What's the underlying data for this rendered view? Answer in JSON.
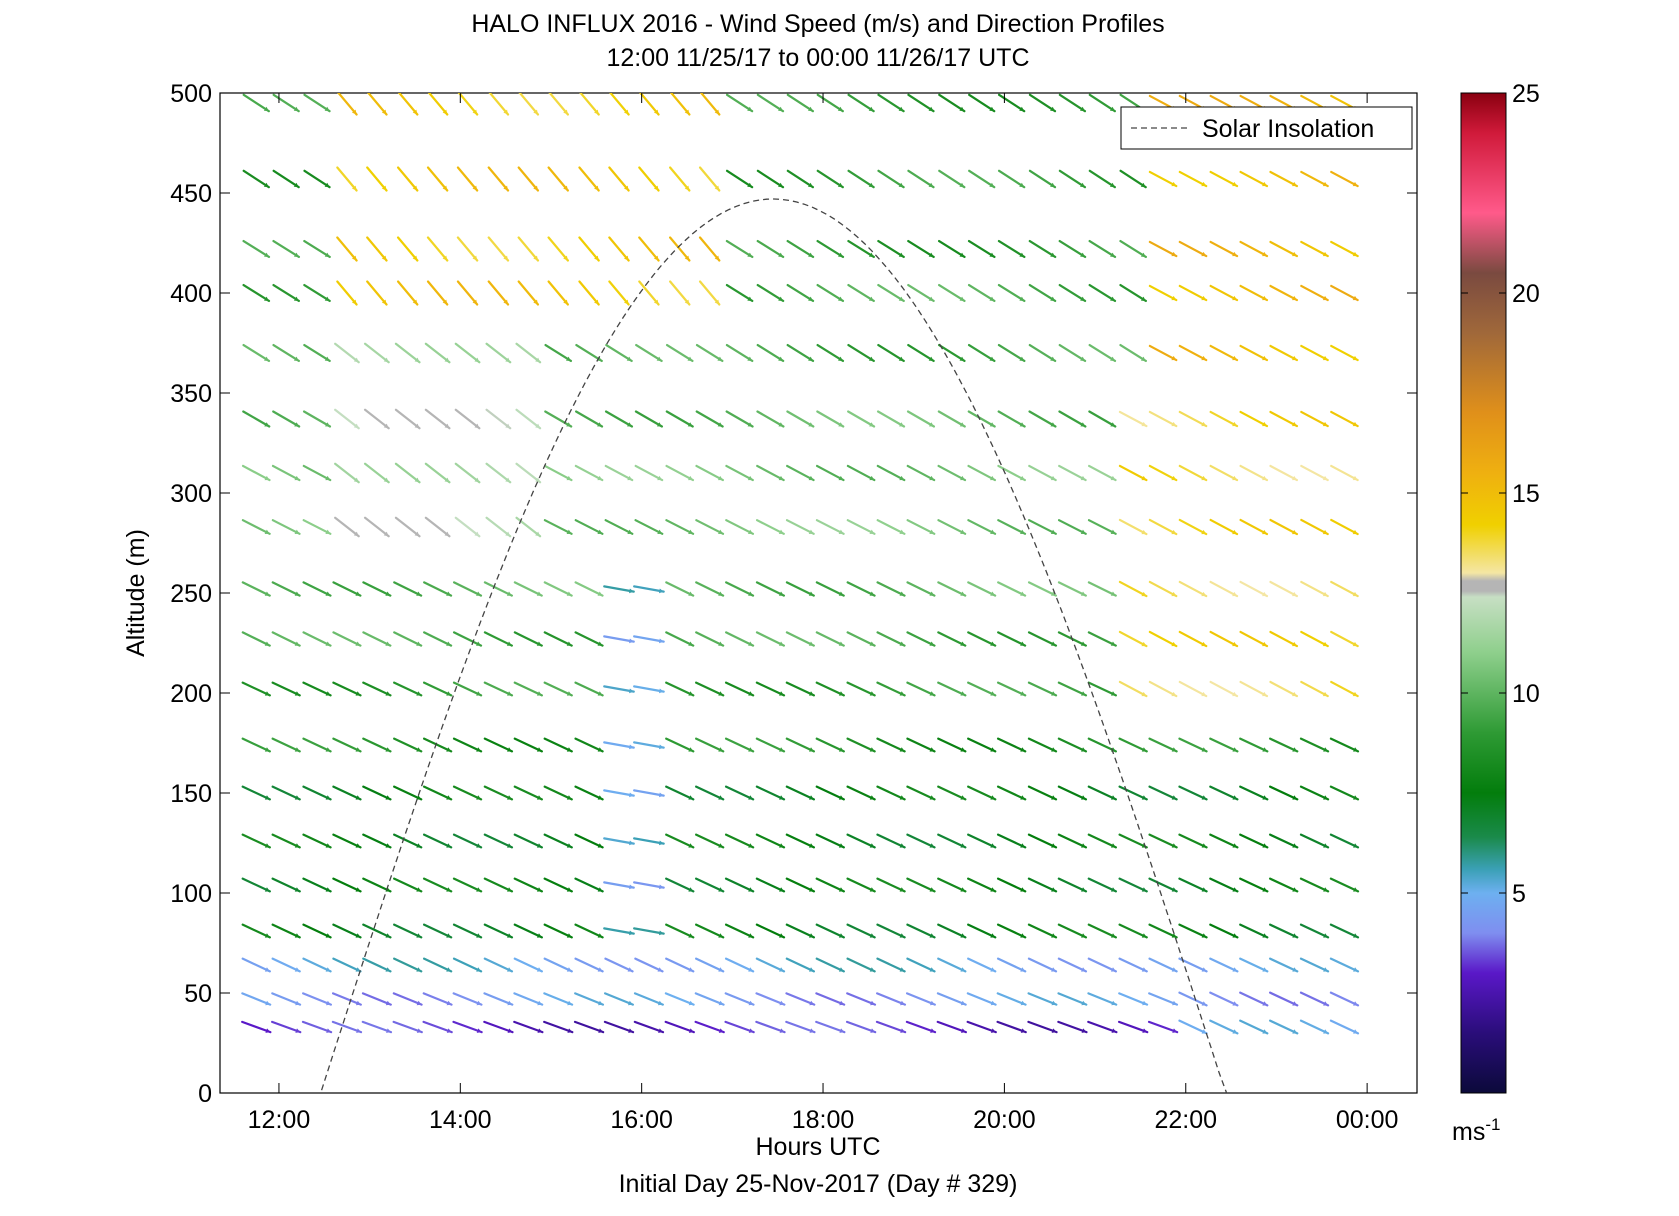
{
  "chart_data": {
    "type": "wind_barb_profile",
    "title": "HALO INFLUX 2016 - Wind Speed (m/s) and Direction Profiles",
    "subtitle": "12:00 11/25/17 to 00:00 11/26/17  UTC",
    "xlabel": "Hours UTC",
    "ylabel": "Altitude (m)",
    "footer": "Initial Day 25-Nov-2017 (Day # 329)",
    "x_ticks": [
      "12:00",
      "14:00",
      "16:00",
      "18:00",
      "20:00",
      "22:00",
      "00:00"
    ],
    "x_tick_hours": [
      12,
      14,
      16,
      18,
      20,
      22,
      24
    ],
    "xlim": [
      11.35,
      24.55
    ],
    "y_ticks": [
      0,
      50,
      100,
      150,
      200,
      250,
      300,
      350,
      400,
      450,
      500
    ],
    "ylim": [
      0,
      500
    ],
    "legend": {
      "entries": [
        "Solar Insolation"
      ],
      "position": "top-right"
    },
    "colorbar": {
      "unit_base": "ms",
      "unit_exp": "-1",
      "ticks": [
        5,
        10,
        15,
        20,
        25
      ],
      "range": [
        0,
        25
      ],
      "stops": [
        {
          "v": 0,
          "c": "#0b0a3a"
        },
        {
          "v": 1.5,
          "c": "#2a0d7a"
        },
        {
          "v": 3,
          "c": "#5a18c8"
        },
        {
          "v": 4,
          "c": "#7f8ef0"
        },
        {
          "v": 5,
          "c": "#6db0f0"
        },
        {
          "v": 5.6,
          "c": "#3aa0b5"
        },
        {
          "v": 6.4,
          "c": "#1a8a4a"
        },
        {
          "v": 7.5,
          "c": "#037d0c"
        },
        {
          "v": 9,
          "c": "#2e9a34"
        },
        {
          "v": 11,
          "c": "#8ecf8c"
        },
        {
          "v": 12.4,
          "c": "#c7dfc4"
        },
        {
          "v": 12.55,
          "c": "#b5b5b5"
        },
        {
          "v": 12.8,
          "c": "#b5b5b5"
        },
        {
          "v": 13,
          "c": "#f4e6a4"
        },
        {
          "v": 14.2,
          "c": "#f0d000"
        },
        {
          "v": 15.5,
          "c": "#efb010"
        },
        {
          "v": 17,
          "c": "#e0901a"
        },
        {
          "v": 19,
          "c": "#a0683a"
        },
        {
          "v": 20.5,
          "c": "#7a4a40"
        },
        {
          "v": 22,
          "c": "#ff5a8a"
        },
        {
          "v": 24,
          "c": "#d01a3a"
        },
        {
          "v": 25,
          "c": "#8a0010"
        }
      ]
    },
    "times": [
      11.75,
      12.08,
      12.42,
      12.75,
      13.08,
      13.42,
      13.75,
      14.08,
      14.42,
      14.75,
      15.08,
      15.42,
      15.75,
      16.08,
      16.42,
      16.75,
      17.08,
      17.42,
      17.75,
      18.08,
      18.42,
      18.75,
      19.08,
      19.42,
      19.75,
      20.08,
      20.42,
      20.75,
      21.08,
      21.42,
      21.75,
      22.08,
      22.42,
      22.75,
      23.08,
      23.42,
      23.75
    ],
    "altitudes": [
      33,
      47,
      64,
      81,
      104,
      126,
      150,
      174,
      202,
      227,
      252,
      283,
      310,
      337,
      370,
      400,
      422,
      457,
      495
    ],
    "speed_by_altitude": [
      3,
      4.5,
      5,
      7.5,
      7.5,
      7.5,
      7.5,
      8.5,
      9,
      9.5,
      10,
      10.5,
      10.5,
      10,
      9.5,
      9.5,
      9,
      9,
      9
    ],
    "direction_by_altitude_deg": [
      290,
      292,
      295,
      295,
      295,
      295,
      295,
      295,
      295,
      296,
      296,
      297,
      298,
      300,
      302,
      302,
      302,
      303,
      303
    ],
    "overrides": [
      {
        "band": [
          12.5,
          17.0
        ],
        "alt_index_from": 15,
        "alt_index_to": 18,
        "speed": 14.5,
        "direction_deg": 320
      },
      {
        "band": [
          12.5,
          14.8
        ],
        "alt_index_from": 11,
        "alt_index_to": 14,
        "speed": 12.0,
        "direction_deg": 308
      },
      {
        "band": [
          15.6,
          16.3
        ],
        "alt_index_from": 3,
        "alt_index_to": 10,
        "speed": 5.0,
        "direction_deg": 280
      },
      {
        "band": [
          21.6,
          24.0
        ],
        "alt_index_from": 14,
        "alt_index_to": 18,
        "speed": 15.0,
        "direction_deg": 298
      },
      {
        "band": [
          21.3,
          24.0
        ],
        "alt_index_from": 8,
        "alt_index_to": 13,
        "speed": 13.8,
        "direction_deg": 298
      },
      {
        "band": [
          22.0,
          24.0
        ],
        "alt_index_from": 0,
        "alt_index_to": 2,
        "speed": 4.5,
        "direction_deg": 295
      }
    ],
    "solar_insolation": {
      "sunrise_hour": 12.47,
      "sunset_hour": 22.45,
      "peak_hour": 17.45,
      "peak_altitude_equiv": 447,
      "style": "dashed"
    }
  }
}
